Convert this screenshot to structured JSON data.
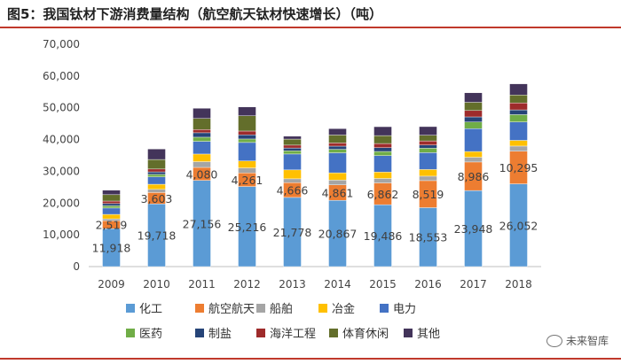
{
  "header": {
    "title": "图5：我国钛材下游消费量结构（航空航天钛材快速增长）（吨）"
  },
  "watermark": {
    "text": "未来智库",
    "icon": "wechat-icon"
  },
  "chart_data": {
    "type": "bar",
    "stacked": true,
    "title": "图5：我国钛材下游消费量结构（航空航天钛材快速增长）（吨）",
    "xlabel": "",
    "ylabel": "",
    "ylim": [
      0,
      70000
    ],
    "yticks": [
      "0",
      "10,000",
      "20,000",
      "30,000",
      "40,000",
      "50,000",
      "60,000",
      "70,000"
    ],
    "ytick_values": [
      0,
      10000,
      20000,
      30000,
      40000,
      50000,
      60000,
      70000
    ],
    "grid": false,
    "legend_position": "bottom",
    "categories": [
      "2009",
      "2010",
      "2011",
      "2012",
      "2013",
      "2014",
      "2015",
      "2016",
      "2017",
      "2018"
    ],
    "series": [
      {
        "name": "化工",
        "color": "#5b9bd5",
        "values": [
          11918,
          19718,
          27156,
          25216,
          21778,
          20867,
          19486,
          18553,
          23948,
          26052
        ],
        "labels": [
          "11,918",
          "19,718",
          "27,156",
          "25,216",
          "21,778",
          "20,867",
          "19,486",
          "18,553",
          "23,948",
          "26,052"
        ]
      },
      {
        "name": "航空航天",
        "color": "#ed7d31",
        "values": [
          2519,
          3603,
          4080,
          4261,
          4666,
          4861,
          6862,
          8519,
          8986,
          10295
        ],
        "labels": [
          "2,519",
          "3,603",
          "4,080",
          "4,261",
          "4,666",
          "4,861",
          "6,862",
          "8,519",
          "8,986",
          "10,295"
        ]
      },
      {
        "name": "船舶",
        "color": "#a5a5a5",
        "values": [
          600,
          1000,
          1800,
          1600,
          1200,
          1500,
          1400,
          1400,
          1500,
          1600
        ]
      },
      {
        "name": "冶金",
        "color": "#ffc000",
        "values": [
          1400,
          1600,
          2400,
          2200,
          2800,
          2300,
          2000,
          2100,
          1800,
          1800
        ]
      },
      {
        "name": "电力",
        "color": "#4472c4",
        "values": [
          2000,
          2300,
          4000,
          5800,
          5000,
          6300,
          5200,
          5300,
          7200,
          5800
        ]
      },
      {
        "name": "医药",
        "color": "#70ad47",
        "values": [
          700,
          800,
          1300,
          1100,
          1000,
          1100,
          1300,
          1400,
          2100,
          2300
        ]
      },
      {
        "name": "制盐",
        "color": "#264478",
        "values": [
          700,
          800,
          1400,
          1300,
          900,
          1000,
          1200,
          1000,
          1600,
          1500
        ]
      },
      {
        "name": "海洋工程",
        "color": "#9e2b2b",
        "values": [
          800,
          900,
          1000,
          1200,
          900,
          1000,
          1300,
          1300,
          2000,
          2200
        ]
      },
      {
        "name": "体育休闲",
        "color": "#636e2b",
        "values": [
          2000,
          3000,
          3500,
          4800,
          1900,
          2500,
          2500,
          1800,
          2600,
          2500
        ]
      },
      {
        "name": "其他",
        "color": "#43345a",
        "values": [
          1400,
          3300,
          3200,
          2800,
          900,
          2000,
          2800,
          2700,
          3000,
          3500
        ]
      }
    ]
  }
}
